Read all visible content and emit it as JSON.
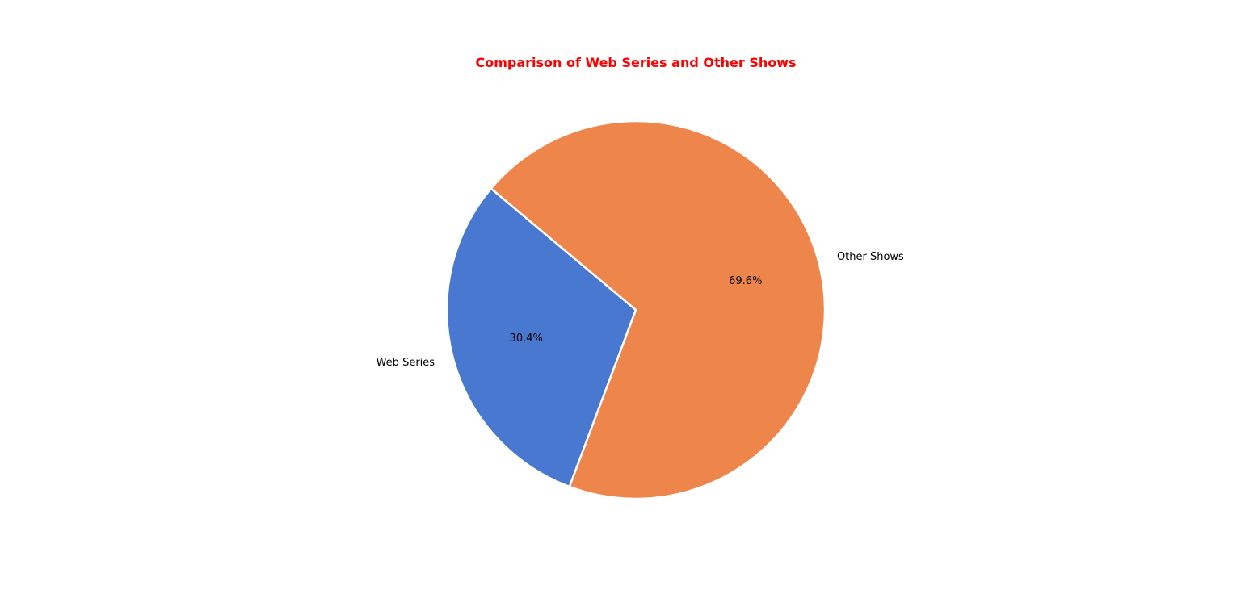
{
  "chart_data": {
    "type": "pie",
    "title": "Comparison of Web Series and Other Shows",
    "title_color": "#ff0000",
    "labels": [
      "Web Series",
      "Other Shows"
    ],
    "values": [
      30.4,
      69.6
    ],
    "percent_labels": [
      "30.4%",
      "69.6%"
    ],
    "colors": [
      "#4878d0",
      "#ee854a"
    ],
    "edge_color": "#ffffff",
    "start_angle_deg": 140,
    "direction": "counterclockwise",
    "legend": "none"
  }
}
